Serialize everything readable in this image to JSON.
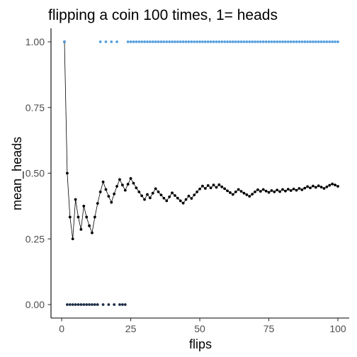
{
  "chart_data": {
    "type": "scatter",
    "title": "flipping a coin 100 times, 1= heads",
    "xlabel": "flips",
    "ylabel": "mean_heads",
    "xlim": [
      0,
      100
    ],
    "ylim": [
      0,
      1
    ],
    "xticks": [
      0,
      25,
      50,
      75,
      100
    ],
    "yticks": [
      0.0,
      0.25,
      0.5,
      0.75,
      1.0
    ],
    "xtick_labels": [
      "0",
      "25",
      "50",
      "75",
      "100"
    ],
    "ytick_labels": [
      "0.00",
      "0.25",
      "0.50",
      "0.75",
      "1.00"
    ],
    "grid": false,
    "legend": "none",
    "series": [
      {
        "kind": "line+points",
        "color": "#000000",
        "x": [
          1,
          2,
          3,
          4,
          5,
          6,
          7,
          8,
          9,
          10,
          11,
          12,
          13,
          14,
          15,
          16,
          17,
          18,
          19,
          20,
          21,
          22,
          23,
          24,
          25,
          26,
          27,
          28,
          29,
          30,
          31,
          32,
          33,
          34,
          35,
          36,
          37,
          38,
          39,
          40,
          41,
          42,
          43,
          44,
          45,
          46,
          47,
          48,
          49,
          50,
          51,
          52,
          53,
          54,
          55,
          56,
          57,
          58,
          59,
          60,
          61,
          62,
          63,
          64,
          65,
          66,
          67,
          68,
          69,
          70,
          71,
          72,
          73,
          74,
          75,
          76,
          77,
          78,
          79,
          80,
          81,
          82,
          83,
          84,
          85,
          86,
          87,
          88,
          89,
          90,
          91,
          92,
          93,
          94,
          95,
          96,
          97,
          98,
          99,
          100
        ],
        "y": [
          1.0,
          0.5,
          0.333,
          0.25,
          0.4,
          0.333,
          0.286,
          0.375,
          0.333,
          0.3,
          0.273,
          0.333,
          0.385,
          0.429,
          0.467,
          0.438,
          0.412,
          0.389,
          0.421,
          0.45,
          0.476,
          0.455,
          0.435,
          0.458,
          0.48,
          0.462,
          0.444,
          0.429,
          0.414,
          0.4,
          0.419,
          0.406,
          0.424,
          0.441,
          0.429,
          0.417,
          0.405,
          0.395,
          0.41,
          0.425,
          0.415,
          0.405,
          0.395,
          0.386,
          0.4,
          0.413,
          0.404,
          0.417,
          0.429,
          0.44,
          0.451,
          0.442,
          0.453,
          0.444,
          0.455,
          0.446,
          0.456,
          0.448,
          0.441,
          0.433,
          0.426,
          0.419,
          0.429,
          0.438,
          0.431,
          0.424,
          0.418,
          0.412,
          0.42,
          0.429,
          0.437,
          0.431,
          0.438,
          0.432,
          0.427,
          0.434,
          0.429,
          0.436,
          0.43,
          0.438,
          0.432,
          0.439,
          0.434,
          0.44,
          0.435,
          0.442,
          0.437,
          0.443,
          0.449,
          0.444,
          0.451,
          0.446,
          0.452,
          0.447,
          0.442,
          0.448,
          0.454,
          0.459,
          0.455,
          0.45
        ]
      },
      {
        "kind": "points",
        "color": "#56a0e0",
        "x": [
          1,
          14,
          16,
          18,
          20,
          24,
          25,
          26,
          27,
          28,
          29,
          30,
          31,
          32,
          33,
          34,
          35,
          36,
          37,
          38,
          39,
          40,
          41,
          42,
          43,
          44,
          45,
          46,
          47,
          48,
          49,
          50,
          51,
          52,
          53,
          54,
          55,
          56,
          57,
          58,
          59,
          60,
          61,
          62,
          63,
          64,
          65,
          66,
          67,
          68,
          69,
          70,
          71,
          72,
          73,
          74,
          75,
          76,
          77,
          78,
          79,
          80,
          81,
          82,
          83,
          84,
          85,
          86,
          87,
          88,
          89,
          90,
          91,
          92,
          93,
          94,
          95,
          96,
          97,
          98,
          99,
          100
        ]
      }
    ]
  }
}
